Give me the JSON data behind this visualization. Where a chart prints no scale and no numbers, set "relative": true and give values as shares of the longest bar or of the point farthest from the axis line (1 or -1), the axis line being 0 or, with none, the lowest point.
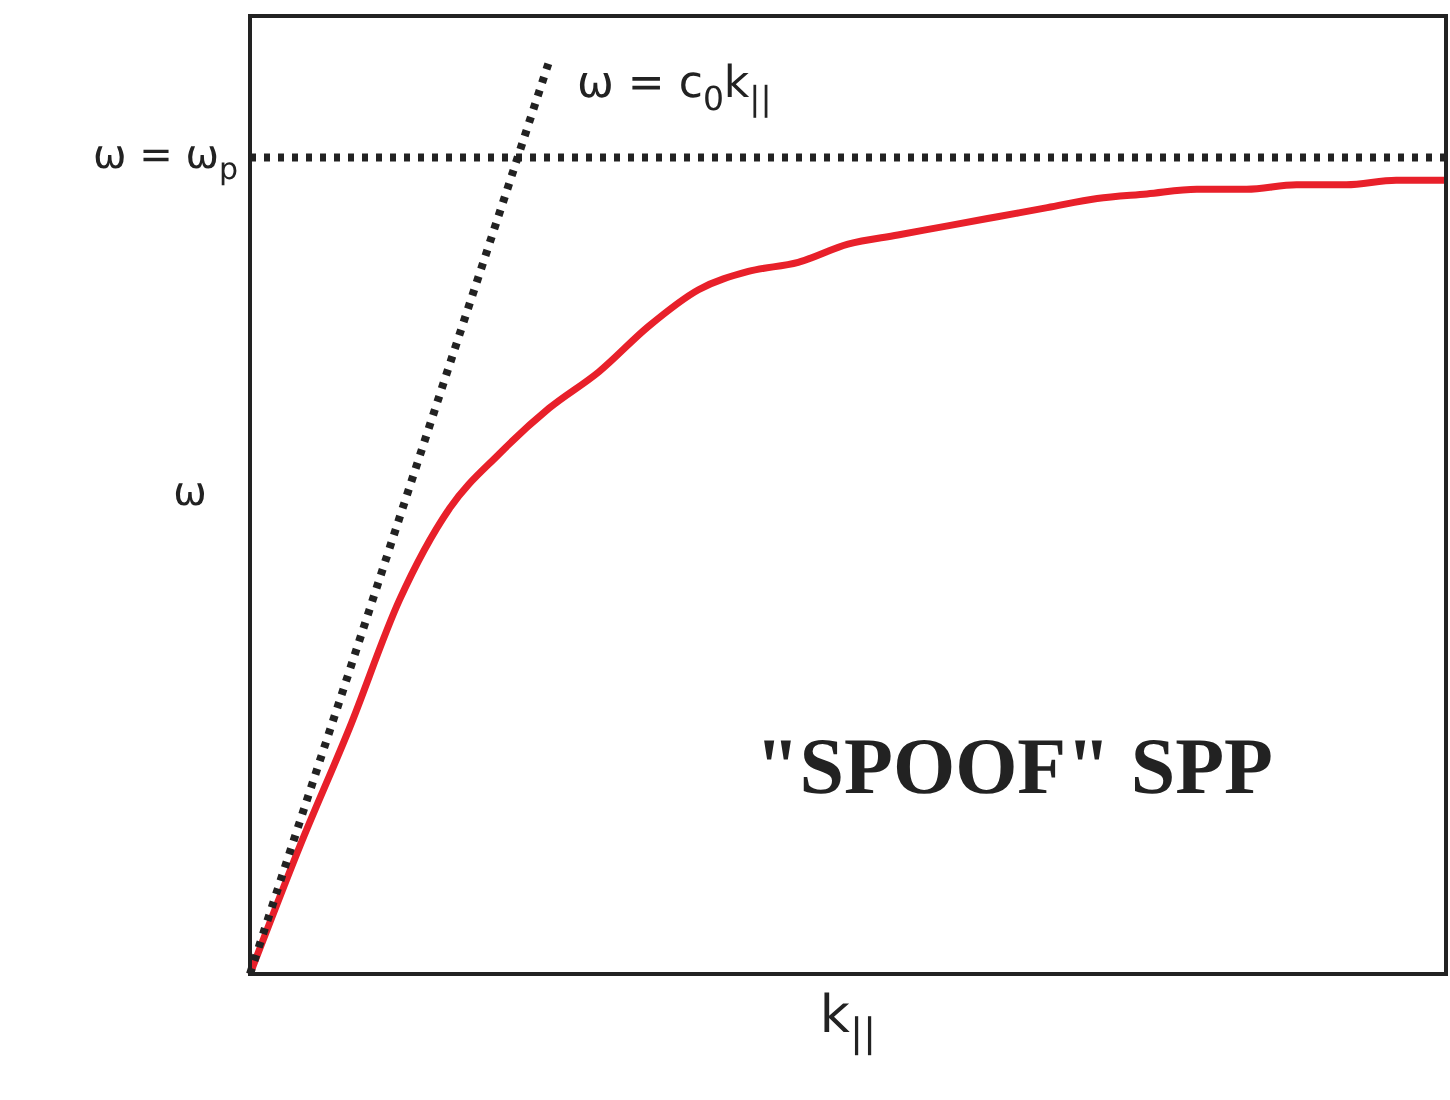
{
  "chart_data": {
    "type": "line",
    "xlabel": "k$_{||}$",
    "ylabel": "ω",
    "relative": true,
    "legend": false,
    "categories": [
      null,
      null,
      null,
      null,
      null,
      null,
      null,
      null,
      null,
      null,
      null,
      null,
      null,
      null,
      null,
      null,
      null,
      null,
      null,
      null,
      null,
      null,
      null,
      null,
      null
    ],
    "series": [
      {
        "name": "ω = c$_{0}$k$_{||}$",
        "color": "#222222",
        "line_style": "dotted",
        "values": [
          0,
          0.167,
          0.333,
          0.5,
          0.667,
          0.833,
          1,
          null,
          null,
          null,
          null,
          null,
          null,
          null,
          null,
          null,
          null,
          null,
          null,
          null,
          null,
          null,
          null,
          null,
          null
        ]
      },
      {
        "color": "#e8202a",
        "line_style": "solid",
        "values": [
          0,
          0.14,
          0.27,
          0.41,
          0.51,
          0.57,
          0.62,
          0.66,
          0.71,
          0.75,
          0.77,
          0.78,
          0.8,
          0.81,
          0.82,
          0.83,
          0.84,
          0.85,
          0.855,
          0.86,
          0.86,
          0.865,
          0.865,
          0.87,
          0.87
        ]
      }
    ],
    "ref_lines": [
      {
        "axis": "y",
        "value": 0.895,
        "label": "ω = ω$_{p}$",
        "color": "#222222",
        "line_style": "dotted"
      }
    ],
    "annotations": [
      "\"SPOOF\" SPP"
    ]
  }
}
